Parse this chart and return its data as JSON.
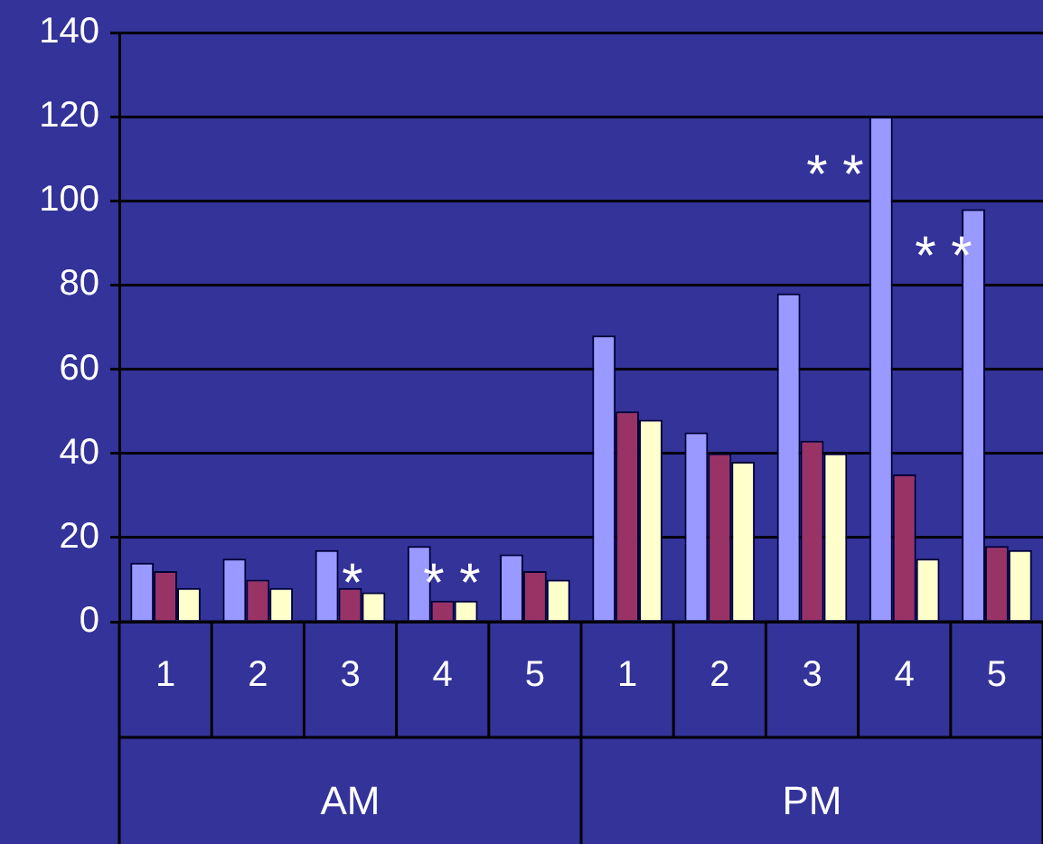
{
  "chart_data": {
    "type": "bar",
    "categories": [
      "1",
      "2",
      "3",
      "4",
      "5",
      "1",
      "2",
      "3",
      "4",
      "5"
    ],
    "series": [
      {
        "color": "#9999ff",
        "values": [
          14,
          15,
          17,
          18,
          16,
          68,
          45,
          78,
          120,
          98
        ]
      },
      {
        "color": "#993366",
        "values": [
          12,
          10,
          8,
          5,
          12,
          50,
          40,
          43,
          35,
          18
        ]
      },
      {
        "color": "#ffffcc",
        "values": [
          8,
          8,
          7,
          5,
          10,
          48,
          38,
          40,
          15,
          17
        ]
      }
    ],
    "ylim": [
      0,
      140
    ],
    "yticks": [
      0,
      20,
      40,
      60,
      80,
      100,
      120,
      140
    ],
    "grid": "y",
    "legend": false,
    "annotations": [
      "AM",
      "PM",
      "*",
      "* *",
      "* *",
      "* *"
    ]
  }
}
